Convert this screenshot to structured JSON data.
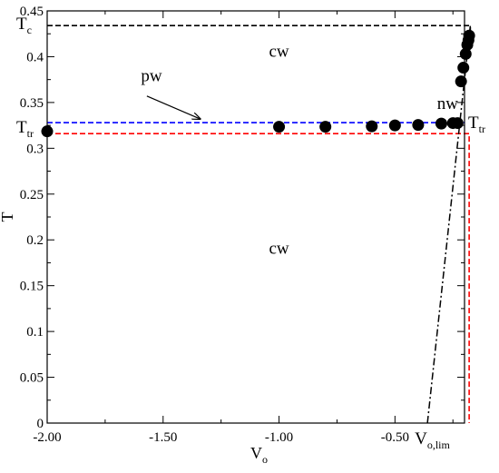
{
  "chart_data": {
    "type": "scatter",
    "xlabel": "V",
    "xlabel_sub": "o",
    "ylabel": "T",
    "xlim": [
      -2.0,
      -0.2
    ],
    "ylim": [
      0,
      0.45
    ],
    "x_ticks": [
      -2.0,
      -1.5,
      -1.0,
      -0.5
    ],
    "x_tick_labels": [
      "-2.00",
      "-1.50",
      "-1.00",
      "-0.50"
    ],
    "y_ticks": [
      0,
      0.05,
      0.1,
      0.15,
      0.2,
      0.25,
      0.3,
      0.35,
      0.4,
      0.45
    ],
    "y_tick_labels": [
      "0",
      "0.05",
      "0.1",
      "0.15",
      "0.2",
      "0.25",
      "0.3",
      "0.35",
      "0.4",
      "0.45"
    ],
    "points": [
      {
        "x": -2.0,
        "y": 0.3185
      },
      {
        "x": -1.0,
        "y": 0.3235
      },
      {
        "x": -0.8,
        "y": 0.3235
      },
      {
        "x": -0.6,
        "y": 0.324
      },
      {
        "x": -0.5,
        "y": 0.325
      },
      {
        "x": -0.4,
        "y": 0.3255
      },
      {
        "x": -0.3,
        "y": 0.327
      },
      {
        "x": -0.25,
        "y": 0.3275
      },
      {
        "x": -0.23,
        "y": 0.3275
      },
      {
        "x": -0.215,
        "y": 0.373
      },
      {
        "x": -0.205,
        "y": 0.388
      },
      {
        "x": -0.195,
        "y": 0.403
      },
      {
        "x": -0.188,
        "y": 0.413
      },
      {
        "x": -0.183,
        "y": 0.418
      },
      {
        "x": -0.18,
        "y": 0.423
      }
    ],
    "lines": {
      "Tc": {
        "y": 0.434,
        "x_end": -0.175,
        "color": "#000000"
      },
      "Ttr_blue": {
        "y": 0.328,
        "color": "#0000ff"
      },
      "red": {
        "y": 0.316,
        "x_vertical": -0.18,
        "color": "#ff0000"
      },
      "dashdot": {
        "x0": -0.36,
        "y0": 0.0,
        "x1": -0.175,
        "y1": 0.434,
        "color": "#000000"
      }
    },
    "annotations": [
      {
        "text": "cw",
        "x": -1.0,
        "y": 0.4
      },
      {
        "text": "cw",
        "x": -1.0,
        "y": 0.185
      },
      {
        "text": "pw",
        "x": -1.55,
        "y": 0.373
      },
      {
        "text": "nw",
        "x": -0.06,
        "y": 0.343
      }
    ],
    "labels": {
      "Tc": {
        "main": "T",
        "sub": "c"
      },
      "Ttr_left": {
        "main": "T",
        "sub": "tr"
      },
      "Ttr_right": {
        "main": "T",
        "sub": "tr"
      },
      "Vo_lim": {
        "main": "V",
        "sub": "o,lim"
      }
    },
    "arrow": {
      "from": [
        -1.57,
        0.357
      ],
      "to": [
        -1.34,
        0.332
      ]
    }
  }
}
